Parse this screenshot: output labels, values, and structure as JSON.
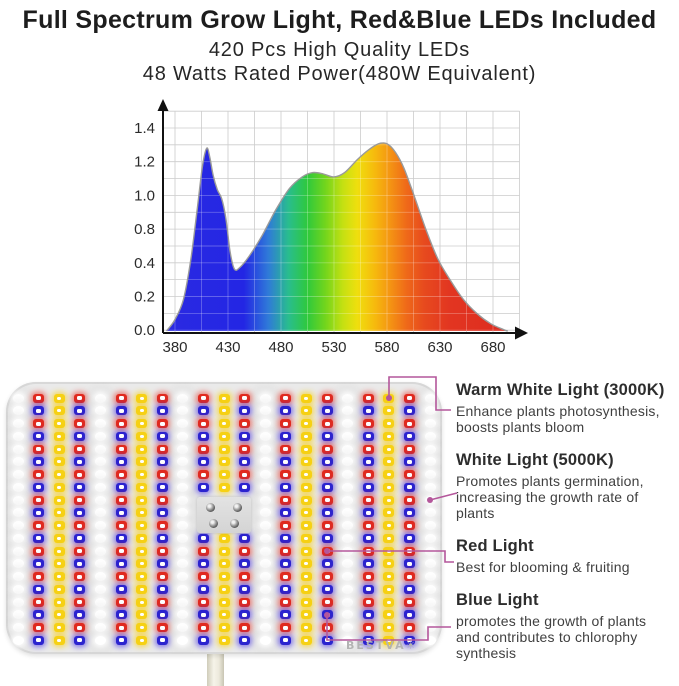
{
  "header": {
    "title": "Full Spectrum Grow Light, Red&Blue LEDs Included",
    "subtitle_leds": "420 Pcs High Quality LEDs",
    "subtitle_power": "48 Watts Rated Power(480W Equivalent)"
  },
  "chart_data": {
    "type": "area",
    "x_ticks": [
      "380",
      "430",
      "480",
      "530",
      "580",
      "630",
      "680"
    ],
    "y_ticks": [
      "1.4",
      "1.2",
      "1.0",
      "0.8",
      "0.4",
      "0.2",
      "0.0"
    ],
    "x_range": [
      375,
      695
    ],
    "y_range": [
      0,
      1.4
    ],
    "grid": true,
    "points": [
      [
        372,
        0
      ],
      [
        380,
        0.08
      ],
      [
        388,
        0.22
      ],
      [
        395,
        0.5
      ],
      [
        401,
        0.85
      ],
      [
        406,
        1.15
      ],
      [
        410,
        1.27
      ],
      [
        413,
        1.2
      ],
      [
        416,
        1.08
      ],
      [
        420,
        0.98
      ],
      [
        424,
        0.92
      ],
      [
        428,
        0.78
      ],
      [
        432,
        0.55
      ],
      [
        436,
        0.43
      ],
      [
        441,
        0.44
      ],
      [
        450,
        0.52
      ],
      [
        462,
        0.66
      ],
      [
        475,
        0.84
      ],
      [
        488,
        0.99
      ],
      [
        500,
        1.07
      ],
      [
        510,
        1.1
      ],
      [
        520,
        1.09
      ],
      [
        530,
        1.07
      ],
      [
        540,
        1.1
      ],
      [
        552,
        1.19
      ],
      [
        563,
        1.26
      ],
      [
        572,
        1.3
      ],
      [
        580,
        1.3
      ],
      [
        588,
        1.24
      ],
      [
        596,
        1.13
      ],
      [
        606,
        0.93
      ],
      [
        617,
        0.7
      ],
      [
        628,
        0.5
      ],
      [
        640,
        0.35
      ],
      [
        652,
        0.22
      ],
      [
        665,
        0.12
      ],
      [
        678,
        0.05
      ],
      [
        690,
        0.01
      ],
      [
        694,
        0
      ]
    ],
    "spectrum_gradient": [
      [
        372,
        "#2b2ae2"
      ],
      [
        445,
        "#2326e4"
      ],
      [
        468,
        "#2f7ad8"
      ],
      [
        487,
        "#29bd8e"
      ],
      [
        505,
        "#2fc93c"
      ],
      [
        522,
        "#73d51c"
      ],
      [
        538,
        "#c3e012"
      ],
      [
        552,
        "#efdf0e"
      ],
      [
        568,
        "#f6bb0d"
      ],
      [
        583,
        "#f49413"
      ],
      [
        598,
        "#ef6a19"
      ],
      [
        615,
        "#e74a1e"
      ],
      [
        640,
        "#e23521"
      ],
      [
        695,
        "#dd2c20"
      ]
    ]
  },
  "panel": {
    "brand": "BESTVA",
    "brand_mark": "☀",
    "columns": 21,
    "rows": 20,
    "column_pattern": [
      "white",
      "redblue",
      "warm",
      "redblue"
    ],
    "led_colors": {
      "warm": "#f6d114",
      "red": "#e02a1f",
      "blue": "#2b23cf",
      "white": "#ffffff"
    }
  },
  "annotations": [
    {
      "title": "Warm White Light (3000K)",
      "body": "Enhance plants photosynthesis,\nboosts plants bloom"
    },
    {
      "title": "White Light (5000K)",
      "body": "Promotes plants germination,\nincreasing the growth rate of\nplants"
    },
    {
      "title": "Red Light",
      "body": "Best for blooming & fruiting"
    },
    {
      "title": "Blue Light",
      "body": "promotes the growth of plants\nand contributes to chlorophy\nsynthesis"
    }
  ],
  "accent_color": "#b4579b"
}
